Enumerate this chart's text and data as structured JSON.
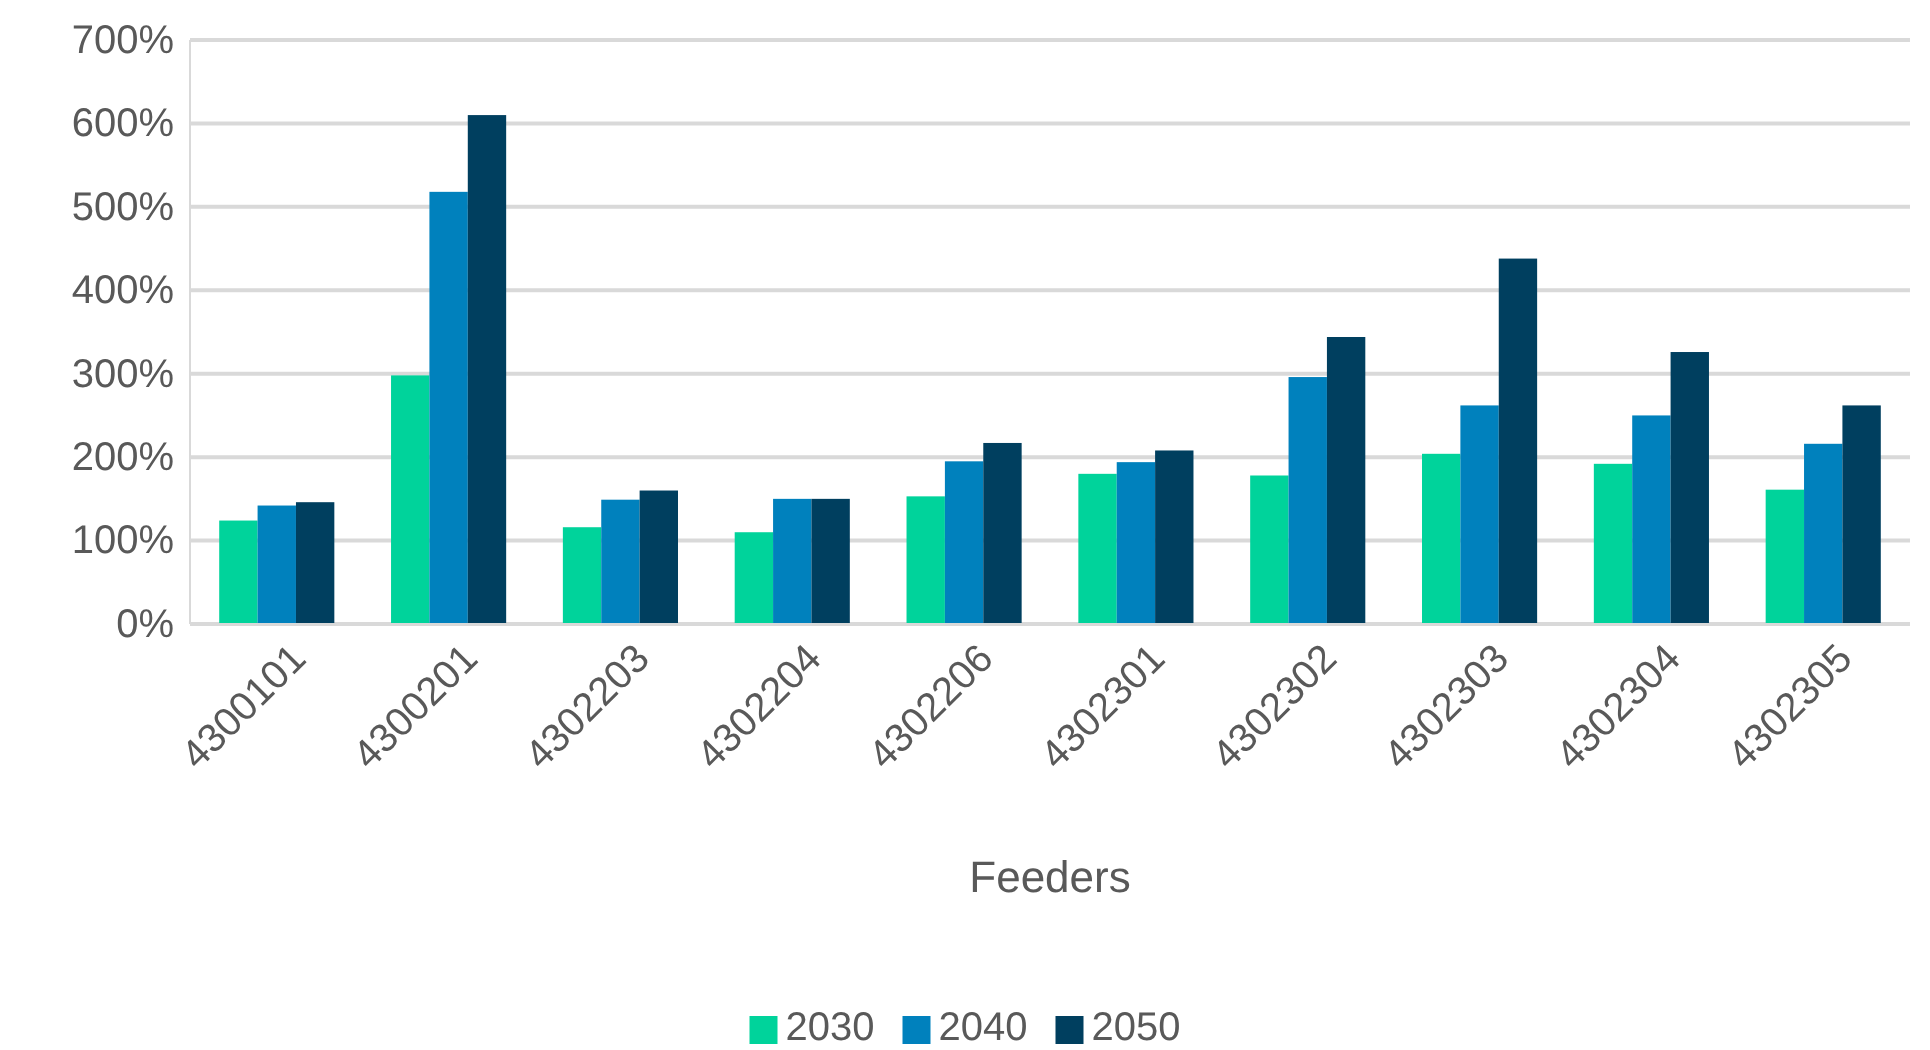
{
  "chart_data": {
    "type": "bar",
    "xlabel": "Feeders",
    "categories": [
      "4300101",
      "4300201",
      "4302203",
      "4302204",
      "4302206",
      "4302301",
      "4302302",
      "4302303",
      "4302304",
      "4302305"
    ],
    "series": [
      {
        "name": "2030",
        "color": "#00d39b",
        "values": [
          124,
          298,
          116,
          110,
          153,
          180,
          178,
          204,
          192,
          161
        ]
      },
      {
        "name": "2040",
        "color": "#0081bd",
        "values": [
          142,
          518,
          149,
          150,
          195,
          194,
          296,
          262,
          250,
          216
        ]
      },
      {
        "name": "2050",
        "color": "#003f5f",
        "values": [
          146,
          610,
          160,
          150,
          217,
          208,
          344,
          438,
          326,
          262
        ]
      }
    ],
    "ylim": [
      0,
      700
    ],
    "yticks": [
      {
        "value": 0,
        "label": "0%"
      },
      {
        "value": 100,
        "label": "100%"
      },
      {
        "value": 200,
        "label": "200%"
      },
      {
        "value": 300,
        "label": "300%"
      },
      {
        "value": 400,
        "label": "400%"
      },
      {
        "value": 500,
        "label": "500%"
      },
      {
        "value": 600,
        "label": "600%"
      },
      {
        "value": 700,
        "label": "700%"
      }
    ],
    "grid": "y",
    "legend": "bottom"
  }
}
